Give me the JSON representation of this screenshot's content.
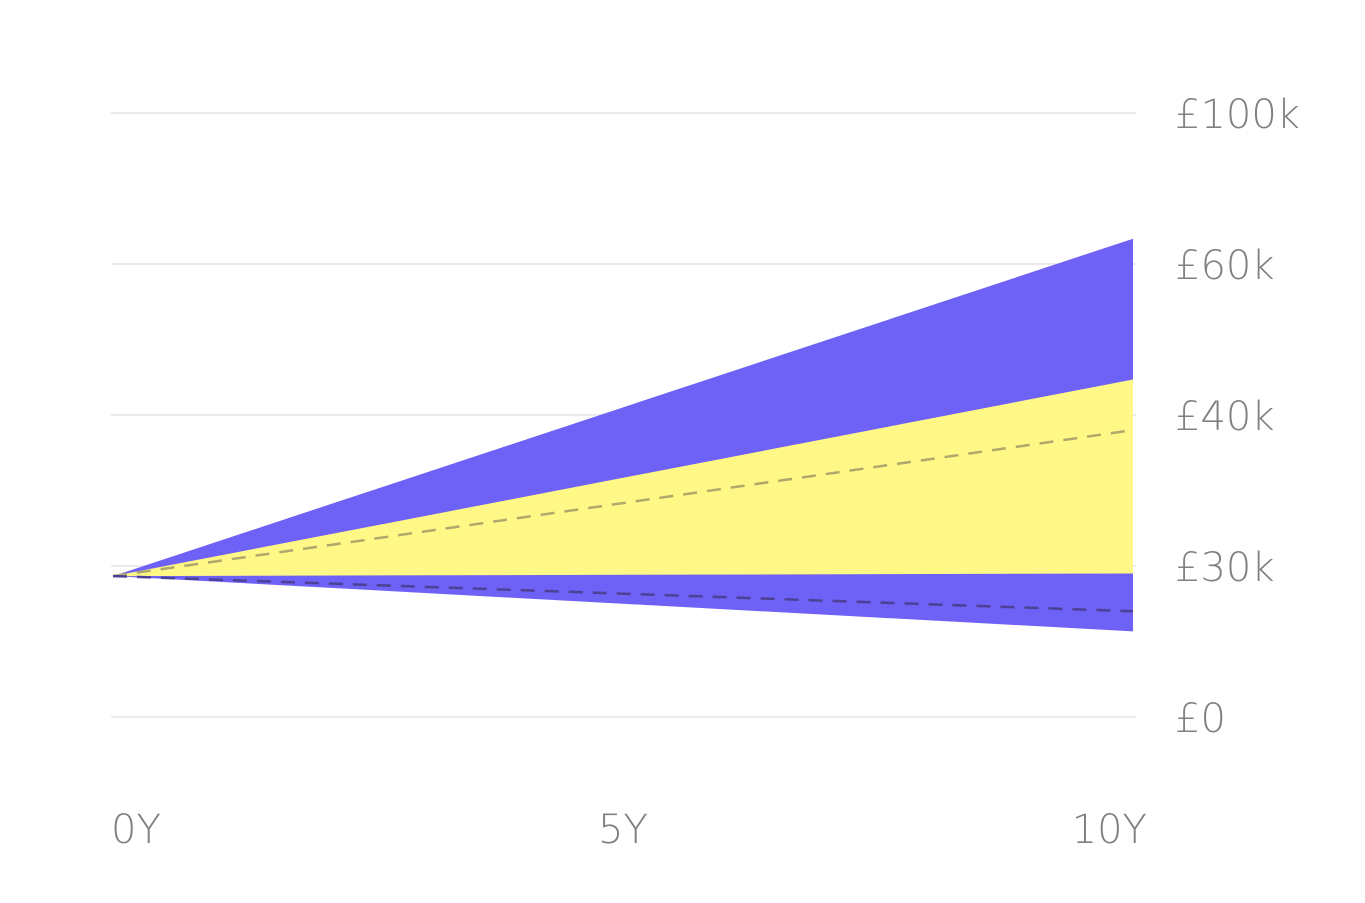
{
  "chart_data": {
    "type": "area",
    "title": "",
    "xlabel": "",
    "ylabel": "",
    "x_ticks": [
      "0Y",
      "5Y",
      "10Y"
    ],
    "y_ticks": [
      "£100k",
      "£60k",
      "£40k",
      "£30k",
      "£0"
    ],
    "x": [
      0,
      10
    ],
    "series": [
      {
        "role": "outer-band-upper",
        "values": [
          28000,
          66700
        ]
      },
      {
        "role": "inner-band-upper",
        "values": [
          28000,
          44700
        ]
      },
      {
        "role": "inner-band-lower",
        "values": [
          28000,
          28500
        ]
      },
      {
        "role": "outer-band-lower",
        "values": [
          28000,
          17000
        ]
      },
      {
        "role": "median-dashed",
        "values": [
          28000,
          39000
        ]
      },
      {
        "role": "low-dashed",
        "values": [
          28000,
          21000
        ]
      }
    ],
    "grid": true,
    "colors": {
      "outer_band": "#6e61f5",
      "inner_band": "#fff886",
      "median_line": "#b0a86b",
      "low_line": "#4b4296",
      "grid": "#ebebeb",
      "tick_text": "#808080"
    }
  }
}
